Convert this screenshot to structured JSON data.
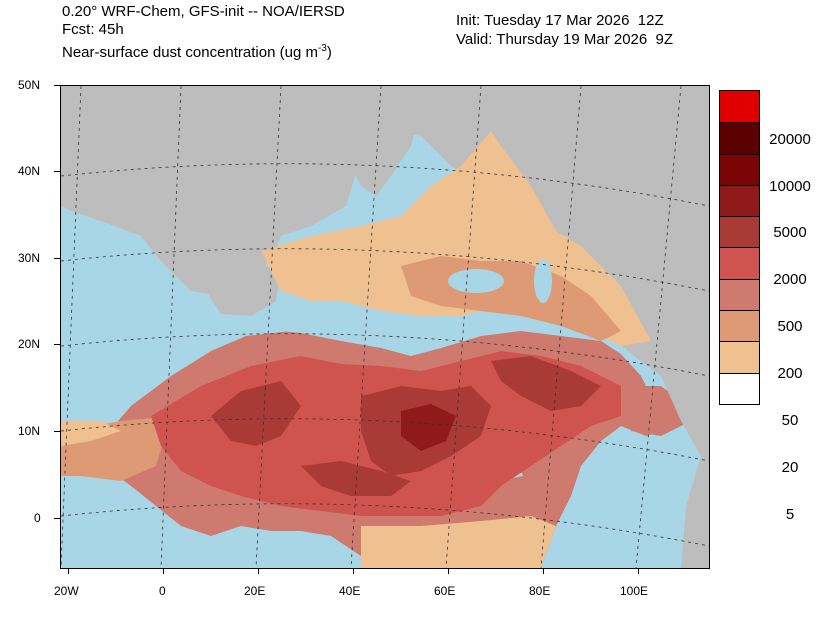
{
  "header": {
    "line1": "0.20° WRF-Chem, GFS-init -- NOA/IERSD",
    "line2": "Fcst: 45h",
    "line3_main": "Near-surface dust concentration (ug m",
    "line3_sup": "-3",
    "line3_end": ")",
    "init": "Init: Tuesday 17 Mar 2026  12Z",
    "valid": "Valid: Thursday 19 Mar 2026  9Z"
  },
  "axes": {
    "y_labels": [
      "50N",
      "40N",
      "30N",
      "20N",
      "10N",
      "0"
    ],
    "x_labels": [
      "20W",
      "0",
      "20E",
      "40E",
      "60E",
      "80E",
      "100E"
    ]
  },
  "legend": {
    "colors": [
      "#e00000",
      "#5a0000",
      "#7a0505",
      "#8f1a1a",
      "#aa3a35",
      "#cf5450",
      "#cf7a6e",
      "#de9a74",
      "#efc090",
      "#ffffff"
    ],
    "labels": [
      "20000",
      "10000",
      "5000",
      "2000",
      "500",
      "200",
      "50",
      "20",
      "5"
    ]
  },
  "map": {
    "ocean_color": "#a9d6e6",
    "land_color": "#bdbdbd",
    "projection": "Lambert conformal"
  }
}
